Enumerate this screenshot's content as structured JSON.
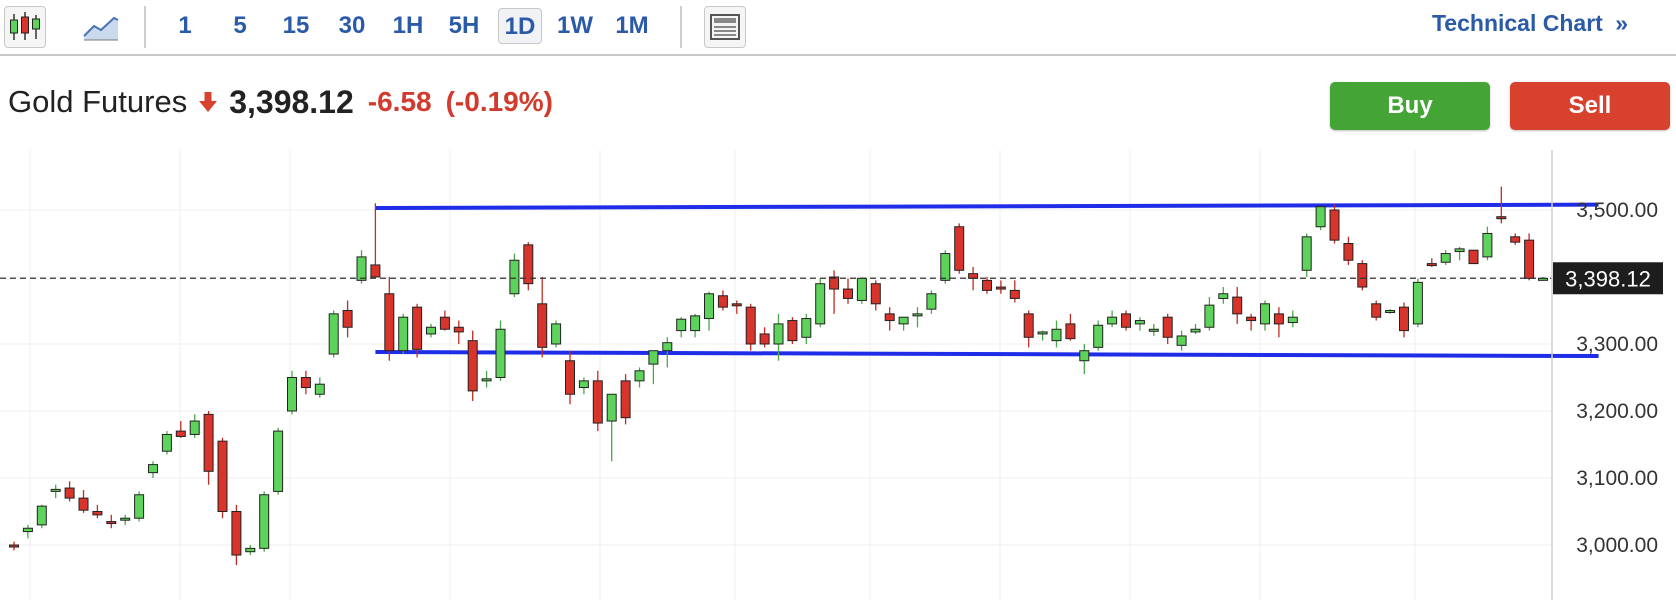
{
  "toolbar": {
    "icons": [
      "candlestick-chart-icon",
      "area-chart-icon",
      "layout-icon"
    ],
    "periods": [
      "1",
      "5",
      "15",
      "30",
      "1H",
      "5H",
      "1D",
      "1W",
      "1M"
    ],
    "active_period": "1D",
    "technical_link": "Technical Chart",
    "technical_link_icon": "double-chevron-right-icon"
  },
  "quote": {
    "name": "Gold Futures",
    "direction_icon": "arrow-down-icon",
    "price": "3,398.12",
    "change": "-6.58",
    "change_pct": "(-0.19%)"
  },
  "actions": {
    "buy_label": "Buy",
    "sell_label": "Sell"
  },
  "colors": {
    "up": "#5ed35c",
    "down": "#d9342b",
    "trendline": "#1f2de8",
    "accent": "#2a5aa8",
    "buy": "#44a536",
    "sell": "#d9412f"
  },
  "chart_data": {
    "type": "candlestick",
    "instrument": "Gold Futures",
    "ylim": [
      2980,
      3560
    ],
    "yticks": [
      {
        "value": 3500,
        "label": "3,500.00"
      },
      {
        "value": 3300,
        "label": "3,300.00"
      },
      {
        "value": 3200,
        "label": "3,200.00"
      },
      {
        "value": 3100,
        "label": "3,100.00"
      },
      {
        "value": 3000,
        "label": "3,000.00"
      }
    ],
    "last_price": {
      "value": 3398.12,
      "label": "3,398.12"
    },
    "grid": true,
    "trendlines": [
      {
        "from": [
          26,
          3503
        ],
        "to": [
          114,
          3508
        ]
      },
      {
        "from": [
          26,
          3288
        ],
        "to": [
          114,
          3282
        ]
      }
    ],
    "candles": [
      [
        3000,
        3005,
        2992,
        2997
      ],
      [
        3020,
        3030,
        3010,
        3025
      ],
      [
        3030,
        3060,
        3025,
        3058
      ],
      [
        3080,
        3090,
        3070,
        3083
      ],
      [
        3085,
        3095,
        3065,
        3070
      ],
      [
        3070,
        3082,
        3048,
        3052
      ],
      [
        3050,
        3060,
        3040,
        3045
      ],
      [
        3035,
        3045,
        3025,
        3032
      ],
      [
        3038,
        3045,
        3030,
        3040
      ],
      [
        3040,
        3080,
        3035,
        3075
      ],
      [
        3108,
        3125,
        3100,
        3120
      ],
      [
        3140,
        3170,
        3135,
        3165
      ],
      [
        3170,
        3185,
        3160,
        3162
      ],
      [
        3165,
        3195,
        3160,
        3185
      ],
      [
        3195,
        3200,
        3090,
        3110
      ],
      [
        3155,
        3160,
        3040,
        3050
      ],
      [
        3050,
        3060,
        2970,
        2985
      ],
      [
        2990,
        3000,
        2985,
        2995
      ],
      [
        2995,
        3080,
        2990,
        3075
      ],
      [
        3080,
        3175,
        3075,
        3170
      ],
      [
        3200,
        3260,
        3195,
        3250
      ],
      [
        3250,
        3260,
        3225,
        3235
      ],
      [
        3225,
        3250,
        3220,
        3240
      ],
      [
        3285,
        3350,
        3280,
        3345
      ],
      [
        3350,
        3365,
        3310,
        3325
      ],
      [
        3395,
        3440,
        3390,
        3430
      ],
      [
        3418,
        3510,
        3400,
        3400
      ],
      [
        3375,
        3400,
        3275,
        3290
      ],
      [
        3290,
        3345,
        3285,
        3340
      ],
      [
        3355,
        3360,
        3280,
        3292
      ],
      [
        3315,
        3330,
        3310,
        3325
      ],
      [
        3340,
        3350,
        3320,
        3322
      ],
      [
        3325,
        3335,
        3300,
        3318
      ],
      [
        3305,
        3320,
        3215,
        3230
      ],
      [
        3245,
        3260,
        3235,
        3248
      ],
      [
        3250,
        3335,
        3245,
        3322
      ],
      [
        3375,
        3435,
        3370,
        3425
      ],
      [
        3448,
        3452,
        3380,
        3390
      ],
      [
        3360,
        3400,
        3280,
        3295
      ],
      [
        3300,
        3335,
        3295,
        3330
      ],
      [
        3275,
        3290,
        3210,
        3225
      ],
      [
        3235,
        3250,
        3225,
        3245
      ],
      [
        3245,
        3260,
        3170,
        3182
      ],
      [
        3185,
        3225,
        3125,
        3225
      ],
      [
        3245,
        3255,
        3180,
        3190
      ],
      [
        3245,
        3265,
        3235,
        3260
      ],
      [
        3270,
        3290,
        3240,
        3290
      ],
      [
        3290,
        3310,
        3265,
        3302
      ],
      [
        3320,
        3340,
        3310,
        3337
      ],
      [
        3320,
        3345,
        3310,
        3342
      ],
      [
        3338,
        3378,
        3320,
        3375
      ],
      [
        3372,
        3380,
        3350,
        3355
      ],
      [
        3360,
        3365,
        3345,
        3358
      ],
      [
        3355,
        3360,
        3290,
        3300
      ],
      [
        3315,
        3325,
        3295,
        3300
      ],
      [
        3300,
        3345,
        3275,
        3330
      ],
      [
        3335,
        3340,
        3300,
        3305
      ],
      [
        3310,
        3345,
        3300,
        3338
      ],
      [
        3330,
        3398,
        3325,
        3390
      ],
      [
        3400,
        3410,
        3345,
        3382
      ],
      [
        3382,
        3398,
        3360,
        3368
      ],
      [
        3365,
        3395,
        3360,
        3398
      ],
      [
        3390,
        3395,
        3350,
        3360
      ],
      [
        3345,
        3355,
        3320,
        3335
      ],
      [
        3330,
        3340,
        3320,
        3340
      ],
      [
        3345,
        3355,
        3325,
        3345
      ],
      [
        3352,
        3380,
        3345,
        3375
      ],
      [
        3395,
        3440,
        3390,
        3435
      ],
      [
        3475,
        3480,
        3405,
        3410
      ],
      [
        3405,
        3415,
        3380,
        3398
      ],
      [
        3395,
        3400,
        3375,
        3380
      ],
      [
        3385,
        3395,
        3375,
        3382
      ],
      [
        3380,
        3395,
        3362,
        3368
      ],
      [
        3345,
        3350,
        3295,
        3310
      ],
      [
        3315,
        3320,
        3305,
        3318
      ],
      [
        3305,
        3335,
        3295,
        3322
      ],
      [
        3330,
        3345,
        3305,
        3308
      ],
      [
        3275,
        3300,
        3255,
        3290
      ],
      [
        3295,
        3335,
        3290,
        3328
      ],
      [
        3330,
        3350,
        3325,
        3340
      ],
      [
        3345,
        3350,
        3320,
        3325
      ],
      [
        3330,
        3340,
        3320,
        3335
      ],
      [
        3320,
        3330,
        3312,
        3322
      ],
      [
        3340,
        3345,
        3300,
        3310
      ],
      [
        3298,
        3320,
        3290,
        3312
      ],
      [
        3318,
        3330,
        3315,
        3322
      ],
      [
        3325,
        3370,
        3320,
        3358
      ],
      [
        3368,
        3385,
        3360,
        3375
      ],
      [
        3370,
        3385,
        3330,
        3345
      ],
      [
        3340,
        3345,
        3320,
        3335
      ],
      [
        3330,
        3365,
        3320,
        3360
      ],
      [
        3345,
        3355,
        3310,
        3330
      ],
      [
        3332,
        3350,
        3325,
        3340
      ],
      [
        3410,
        3465,
        3400,
        3460
      ],
      [
        3475,
        3505,
        3470,
        3505
      ],
      [
        3500,
        3508,
        3450,
        3455
      ],
      [
        3450,
        3460,
        3418,
        3425
      ],
      [
        3420,
        3425,
        3380,
        3385
      ],
      [
        3360,
        3365,
        3335,
        3340
      ],
      [
        3348,
        3352,
        3345,
        3350
      ],
      [
        3355,
        3362,
        3310,
        3320
      ],
      [
        3330,
        3398,
        3325,
        3392
      ],
      [
        3420,
        3428,
        3415,
        3418
      ],
      [
        3422,
        3440,
        3418,
        3435
      ],
      [
        3438,
        3445,
        3425,
        3442
      ],
      [
        3440,
        3440,
        3420,
        3420
      ],
      [
        3430,
        3475,
        3425,
        3465
      ],
      [
        3490,
        3535,
        3480,
        3488
      ],
      [
        3460,
        3465,
        3448,
        3452
      ],
      [
        3455,
        3465,
        3395,
        3398
      ],
      [
        3398,
        3400,
        3398,
        3398
      ]
    ]
  }
}
